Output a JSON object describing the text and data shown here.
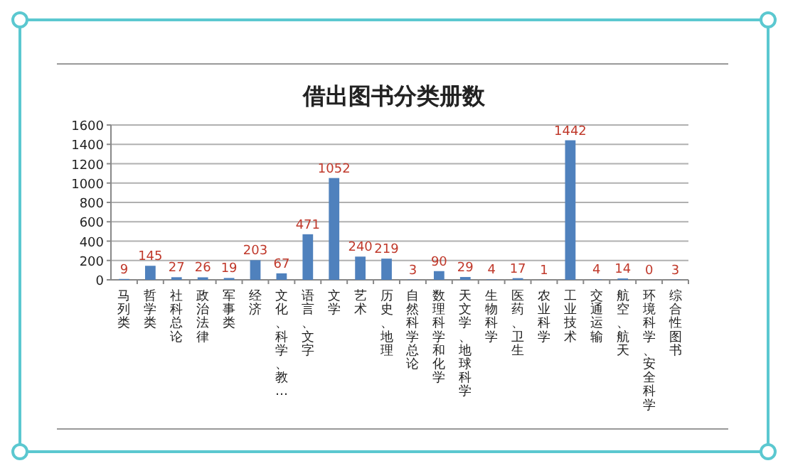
{
  "chart_data": {
    "type": "bar",
    "title": "借出图书分类册数",
    "categories": [
      "马列类",
      "哲学类",
      "社科总论",
      "政治法律",
      "军事类",
      "经济",
      "文化、科学、教…",
      "语言、文字",
      "文学",
      "艺术",
      "历史、地理",
      "自然科学总论",
      "数理科学和化学",
      "天文学、地球科学",
      "生物科学",
      "医药、卫生",
      "农业科学",
      "工业技术",
      "交通运输",
      "航空、航天",
      "环境科学、安全科学",
      "综合性图书"
    ],
    "values": [
      9,
      145,
      27,
      26,
      19,
      203,
      67,
      471,
      1052,
      240,
      219,
      3,
      90,
      29,
      4,
      17,
      1,
      1442,
      4,
      14,
      0,
      3
    ],
    "color": "#4f81bd",
    "ylim": [
      0,
      1600
    ],
    "yticks": [
      0,
      200,
      400,
      600,
      800,
      1000,
      1200,
      1400,
      1600
    ],
    "grid": "y",
    "data_labels": true
  }
}
